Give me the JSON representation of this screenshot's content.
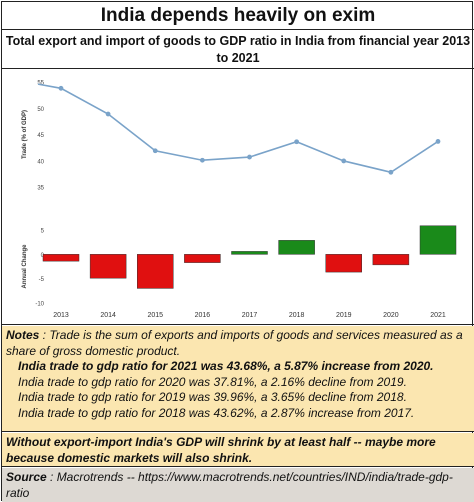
{
  "header": {
    "title": "India depends heavily on exim",
    "subtitle": "Total export and import of goods to GDP ratio in India from financial year 2013 to 2021"
  },
  "colors": {
    "line": "#7aa3c9",
    "positive": "#1a8a1a",
    "negative": "#e01010"
  },
  "chart_data": [
    {
      "type": "line",
      "ylabel": "Trade (% of GDP)",
      "ylim": [
        35,
        55
      ],
      "yticks": [
        35,
        40,
        45,
        50,
        55
      ],
      "categories": [
        "2013",
        "2014",
        "2015",
        "2016",
        "2017",
        "2018",
        "2019",
        "2020",
        "2021"
      ],
      "values": [
        53.8,
        48.9,
        41.9,
        40.1,
        40.7,
        43.62,
        39.96,
        37.81,
        43.68
      ],
      "grid": false
    },
    {
      "type": "bar",
      "ylabel": "Annual Change",
      "ylim": [
        -10,
        5
      ],
      "yticks": [
        -10,
        -5,
        0,
        5
      ],
      "categories": [
        "2013",
        "2014",
        "2015",
        "2016",
        "2017",
        "2018",
        "2019",
        "2020",
        "2021"
      ],
      "values": [
        -1.4,
        -4.9,
        -7.0,
        -1.7,
        0.6,
        2.87,
        -3.65,
        -2.16,
        5.87
      ],
      "xticklabels": [
        "2013",
        "2014",
        "2015",
        "2016",
        "2017",
        "2018",
        "2019",
        "2020",
        "2021"
      ]
    }
  ],
  "notes": {
    "label": "Notes",
    "text": " : Trade is the sum of exports and imports of goods and services measured as a share of gross domestic product.",
    "line_2021": "India trade to gdp ratio for 2021 was 43.68%, a 5.87% increase from 2020.",
    "line_2020": "India trade to gdp ratio for 2020 was 37.81%, a 2.16% decline from 2019.",
    "line_2019": "India trade to gdp ratio for 2019 was 39.96%, a 3.65% decline from 2018.",
    "line_2018": "India trade to gdp ratio for 2018 was 43.62%, a 2.87% increase from 2017."
  },
  "warning": "Without export-import India's GDP will shrink by at least half -- maybe more because domestic markets will also shrink.",
  "source": {
    "label": "Source",
    "text": " : Macrotrends -- https://www.macrotrends.net/countries/IND/india/trade-gdp-ratio"
  }
}
